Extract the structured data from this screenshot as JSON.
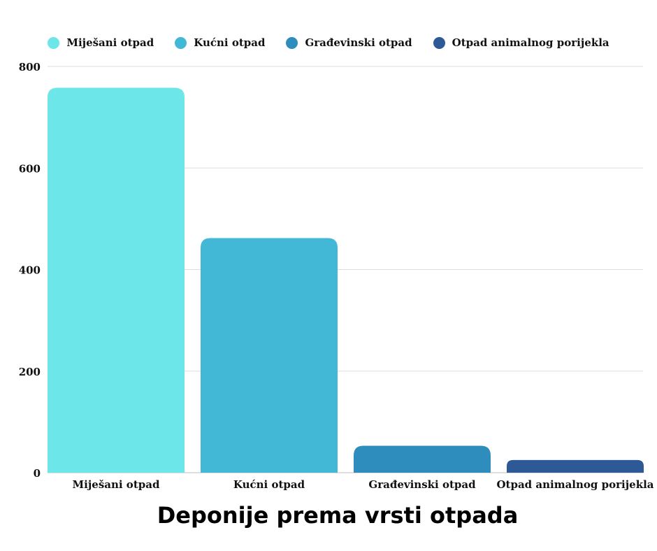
{
  "chart_data": {
    "type": "bar",
    "title": "Deponije prema vrsti otpada",
    "xlabel": "",
    "ylabel": "",
    "categories": [
      "Miješani otpad",
      "Kućni otpad",
      "Građevinski otpad",
      "Otpad animalnog porijekla"
    ],
    "values": [
      758,
      462,
      53,
      25
    ],
    "colors": [
      "#6ce6e9",
      "#42b7d6",
      "#2f8dbd",
      "#2d5a97"
    ],
    "ylim": [
      0,
      800
    ],
    "yticks": [
      0,
      200,
      400,
      600,
      800
    ],
    "grid": true,
    "legend_position": "top-center",
    "legend": [
      "Miješani otpad",
      "Kućni otpad",
      "Građevinski otpad",
      "Otpad animalnog porijekla"
    ]
  }
}
